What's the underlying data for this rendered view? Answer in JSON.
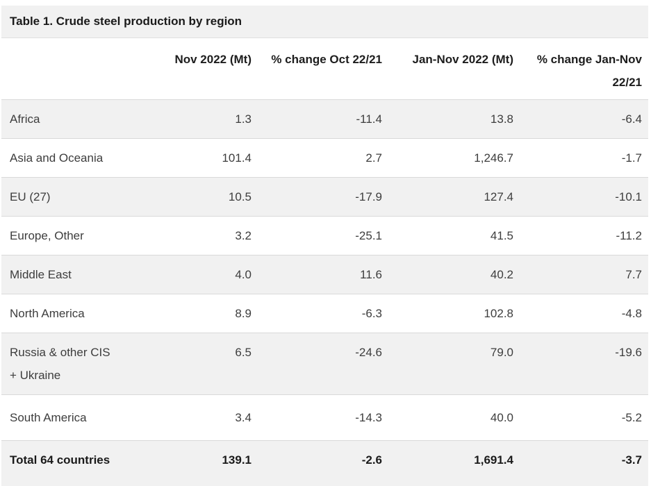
{
  "chart_data": {
    "type": "table",
    "title": "Table 1. Crude steel production by region",
    "columns": [
      "",
      "Nov 2022 (Mt)",
      "% change Oct 22/21",
      "Jan-Nov 2022 (Mt)",
      "% change Jan-Nov 22/21"
    ],
    "rows": [
      {
        "region": "Africa",
        "values": [
          "1.3",
          "-11.4",
          "13.8",
          "-6.4"
        ]
      },
      {
        "region": "Asia and Oceania",
        "values": [
          "101.4",
          "2.7",
          "1,246.7",
          "-1.7"
        ]
      },
      {
        "region": "EU (27)",
        "values": [
          "10.5",
          "-17.9",
          "127.4",
          "-10.1"
        ]
      },
      {
        "region": "Europe, Other",
        "values": [
          "3.2",
          "-25.1",
          "41.5",
          "-11.2"
        ]
      },
      {
        "region": "Middle East",
        "values": [
          "4.0",
          "11.6",
          "40.2",
          "7.7"
        ]
      },
      {
        "region": "North America",
        "values": [
          "8.9",
          "-6.3",
          "102.8",
          "-4.8"
        ]
      },
      {
        "region": "Russia & other CIS\n+ Ukraine",
        "values": [
          "6.5",
          "-24.6",
          "79.0",
          "-19.6"
        ]
      },
      {
        "region": "South America",
        "values": [
          "3.4",
          "-14.3",
          "40.0",
          "-5.2"
        ]
      },
      {
        "region": "Total 64 countries",
        "values": [
          "139.1",
          "-2.6",
          "1,691.4",
          "-3.7"
        ]
      }
    ],
    "layout": {
      "value_alignment": "right",
      "grid": "horizontal-separators-only"
    }
  },
  "colors": {
    "title_bar_bg": "#f1f1f1",
    "row_alt_bg": "#f1f1f1",
    "row_bg": "#ffffff",
    "separator": "#d9d9d9",
    "text": "#3d3d3d",
    "text_bold": "#1a1a1a"
  }
}
